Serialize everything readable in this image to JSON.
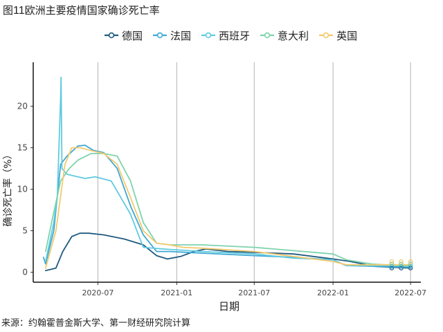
{
  "chart_data": {
    "type": "line",
    "title_prefix": "图",
    "title_number": "11",
    "title_text": "欧洲主要疫情国家确诊死亡率",
    "xlabel": "日期",
    "ylabel": "确诊死亡率（%）",
    "source": "来源：约翰霍普金斯大学、第一财经研究院计算",
    "xlim": [
      "2020-02-01",
      "2022-07-25"
    ],
    "ylim": [
      -1.2,
      25.3
    ],
    "yticks": [
      0,
      5,
      10,
      15,
      20
    ],
    "xticks": [
      "2020-07",
      "2021-01",
      "2021-07",
      "2022-01",
      "2022-07"
    ],
    "grid": "vertical",
    "legend_position": "top",
    "series": [
      {
        "name": "德国",
        "color": "#1f5a7f",
        "points": [
          [
            "2020-03-01",
            0.2
          ],
          [
            "2020-03-25",
            0.5
          ],
          [
            "2020-04-10",
            2.5
          ],
          [
            "2020-05-01",
            4.3
          ],
          [
            "2020-05-20",
            4.7
          ],
          [
            "2020-06-10",
            4.7
          ],
          [
            "2020-07-15",
            4.5
          ],
          [
            "2020-09-01",
            4.0
          ],
          [
            "2020-10-15",
            3.3
          ],
          [
            "2020-11-15",
            2.0
          ],
          [
            "2020-12-10",
            1.6
          ],
          [
            "2021-01-10",
            1.9
          ],
          [
            "2021-02-10",
            2.5
          ],
          [
            "2021-03-10",
            2.8
          ],
          [
            "2021-05-01",
            2.5
          ],
          [
            "2021-07-01",
            2.4
          ],
          [
            "2021-10-01",
            2.2
          ],
          [
            "2022-01-01",
            1.6
          ],
          [
            "2022-02-10",
            1.3
          ],
          [
            "2022-04-10",
            0.7
          ],
          [
            "2022-07-01",
            0.5
          ]
        ]
      },
      {
        "name": "法国",
        "color": "#3ea8d4",
        "points": [
          [
            "2020-02-25",
            1.8
          ],
          [
            "2020-03-01",
            1.0
          ],
          [
            "2020-03-20",
            5.0
          ],
          [
            "2020-04-05",
            13.0
          ],
          [
            "2020-04-20",
            14.0
          ],
          [
            "2020-05-15",
            15.2
          ],
          [
            "2020-06-01",
            15.3
          ],
          [
            "2020-06-20",
            14.7
          ],
          [
            "2020-07-15",
            14.4
          ],
          [
            "2020-08-15",
            12.5
          ],
          [
            "2020-09-15",
            8.0
          ],
          [
            "2020-10-15",
            4.5
          ],
          [
            "2020-11-15",
            2.5
          ],
          [
            "2020-12-15",
            2.5
          ],
          [
            "2021-03-01",
            2.3
          ],
          [
            "2021-07-01",
            2.0
          ],
          [
            "2021-10-01",
            1.8
          ],
          [
            "2022-01-01",
            1.5
          ],
          [
            "2022-02-01",
            0.8
          ],
          [
            "2022-07-01",
            0.6
          ]
        ]
      },
      {
        "name": "西班牙",
        "color": "#5fcadf",
        "points": [
          [
            "2020-03-01",
            1.3
          ],
          [
            "2020-03-20",
            6.0
          ],
          [
            "2020-03-28",
            9.0
          ],
          [
            "2020-04-05",
            21.0
          ],
          [
            "2020-04-06",
            23.5
          ],
          [
            "2020-04-08",
            12.5
          ],
          [
            "2020-04-20",
            11.8
          ],
          [
            "2020-05-15",
            11.5
          ],
          [
            "2020-06-01",
            11.3
          ],
          [
            "2020-06-25",
            11.5
          ],
          [
            "2020-08-01",
            11.0
          ],
          [
            "2020-09-15",
            7.0
          ],
          [
            "2020-10-15",
            3.0
          ],
          [
            "2020-12-01",
            2.8
          ],
          [
            "2021-03-01",
            2.5
          ],
          [
            "2021-07-01",
            2.2
          ],
          [
            "2021-10-01",
            1.7
          ],
          [
            "2022-01-01",
            1.5
          ],
          [
            "2022-02-01",
            0.8
          ],
          [
            "2022-07-01",
            0.8
          ]
        ]
      },
      {
        "name": "意大利",
        "color": "#7dd3ad",
        "points": [
          [
            "2020-03-01",
            2.5
          ],
          [
            "2020-03-15",
            6.0
          ],
          [
            "2020-04-05",
            11.0
          ],
          [
            "2020-04-25",
            12.5
          ],
          [
            "2020-05-15",
            13.5
          ],
          [
            "2020-06-15",
            14.3
          ],
          [
            "2020-07-15",
            14.3
          ],
          [
            "2020-08-15",
            14.0
          ],
          [
            "2020-09-15",
            11.0
          ],
          [
            "2020-10-15",
            6.0
          ],
          [
            "2020-11-15",
            3.5
          ],
          [
            "2020-12-15",
            3.3
          ],
          [
            "2021-03-01",
            3.3
          ],
          [
            "2021-07-01",
            3.0
          ],
          [
            "2021-10-01",
            2.6
          ],
          [
            "2022-01-01",
            2.2
          ],
          [
            "2022-02-01",
            1.5
          ],
          [
            "2022-04-01",
            1.0
          ],
          [
            "2022-07-01",
            0.7
          ]
        ]
      },
      {
        "name": "英国",
        "color": "#f4c96d",
        "points": [
          [
            "2020-03-01",
            0.5
          ],
          [
            "2020-03-25",
            5.0
          ],
          [
            "2020-04-15",
            13.0
          ],
          [
            "2020-05-01",
            15.0
          ],
          [
            "2020-05-20",
            15.0
          ],
          [
            "2020-06-20",
            14.6
          ],
          [
            "2020-07-15",
            14.3
          ],
          [
            "2020-08-15",
            13.0
          ],
          [
            "2020-09-15",
            9.0
          ],
          [
            "2020-10-15",
            5.0
          ],
          [
            "2020-11-15",
            3.5
          ],
          [
            "2020-12-15",
            3.3
          ],
          [
            "2021-01-15",
            3.0
          ],
          [
            "2021-03-01",
            2.9
          ],
          [
            "2021-07-01",
            2.5
          ],
          [
            "2021-10-01",
            1.9
          ],
          [
            "2022-01-01",
            1.3
          ],
          [
            "2022-02-01",
            0.9
          ],
          [
            "2022-07-01",
            0.9
          ]
        ]
      }
    ]
  }
}
